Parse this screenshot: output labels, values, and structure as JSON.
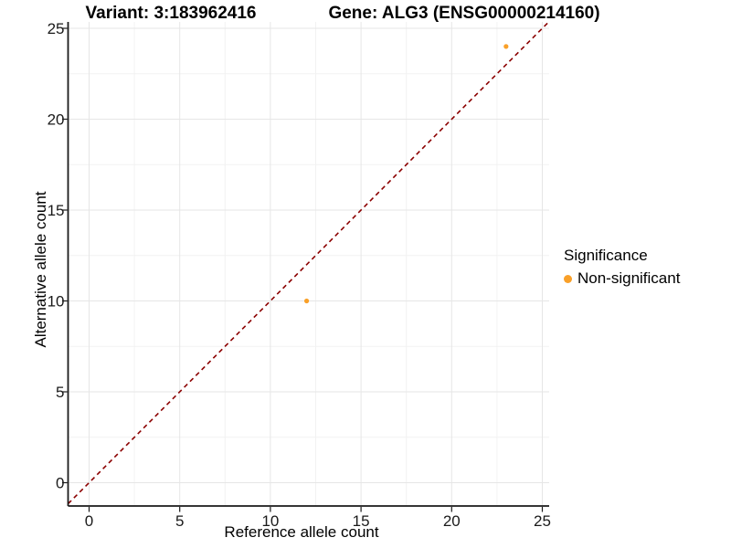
{
  "title": {
    "variant": "Variant: 3:183962416",
    "gene": "Gene: ALG3 (ENSG00000214160)"
  },
  "axes": {
    "x_label": "Reference allele count",
    "y_label": "Alternative allele count"
  },
  "legend": {
    "title": "Significance",
    "items": [
      {
        "label": "Non-significant",
        "color": "#F9A029"
      }
    ]
  },
  "chart_data": {
    "type": "scatter",
    "title": "Variant: 3:183962416 | Gene: ALG3 (ENSG00000214160)",
    "xlabel": "Reference allele count",
    "ylabel": "Alternative allele count",
    "x_ticks": [
      0,
      5,
      10,
      15,
      20,
      25
    ],
    "y_ticks": [
      0,
      5,
      10,
      15,
      20,
      25
    ],
    "xlim": [
      -1.25,
      25.5
    ],
    "ylim": [
      -1.25,
      25.5
    ],
    "grid": "major+minor",
    "legend_position": "right",
    "series": [
      {
        "name": "Non-significant",
        "points": [
          {
            "x": 12,
            "y": 10
          },
          {
            "x": 23,
            "y": 24
          }
        ]
      }
    ],
    "abline": {
      "slope": 1,
      "intercept": 0,
      "style": "dashed",
      "color": "#8B0000"
    },
    "colors": {
      "point": "#F9A029",
      "abline": "#8B0000",
      "grid_major": "#E6E6E6",
      "grid_minor": "#F2F2F2",
      "axis_line": "#1A1A1A",
      "tick_text": "#1A1A1A",
      "background": "#FFFFFF"
    }
  }
}
